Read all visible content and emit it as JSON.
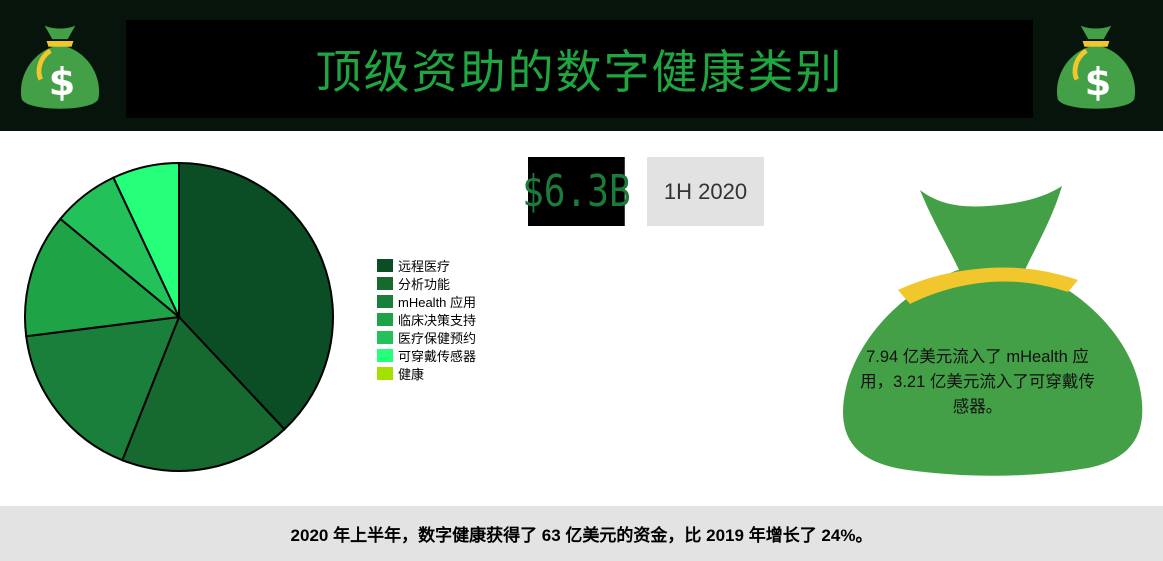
{
  "header": {
    "title": "顶级资助的数字健康类别",
    "bag_symbol": "$"
  },
  "stat": {
    "value": "$6.3B",
    "period": "1H 2020"
  },
  "bag_note": "7.94 亿美元流入了 mHealth 应用，3.21 亿美元流入了可穿戴传感器。",
  "footer": {
    "text": "2020 年上半年，数字健康获得了 63 亿美元的资金，比 2019 年增长了 24%。"
  },
  "colors": {
    "header_bg": "#06140b",
    "title_green": "#1fa640",
    "bag_green": "#43a047",
    "bag_tie": "#f2c62d"
  },
  "chart_data": {
    "type": "pie",
    "title": "",
    "legend_position": "right",
    "series": [
      {
        "name": "远程医疗",
        "value": 38,
        "color": "#0b4d25"
      },
      {
        "name": "分析功能",
        "value": 18,
        "color": "#16692f"
      },
      {
        "name": "mHealth 应用",
        "value": 17,
        "color": "#1a7f3a"
      },
      {
        "name": "临床决策支持",
        "value": 13,
        "color": "#1fa347"
      },
      {
        "name": "医疗保健预约",
        "value": 7,
        "color": "#22c15a"
      },
      {
        "name": "可穿戴传感器",
        "value": 7,
        "color": "#26ff7a"
      },
      {
        "name": "健康",
        "value": 0,
        "color": "#a6e000"
      }
    ]
  }
}
